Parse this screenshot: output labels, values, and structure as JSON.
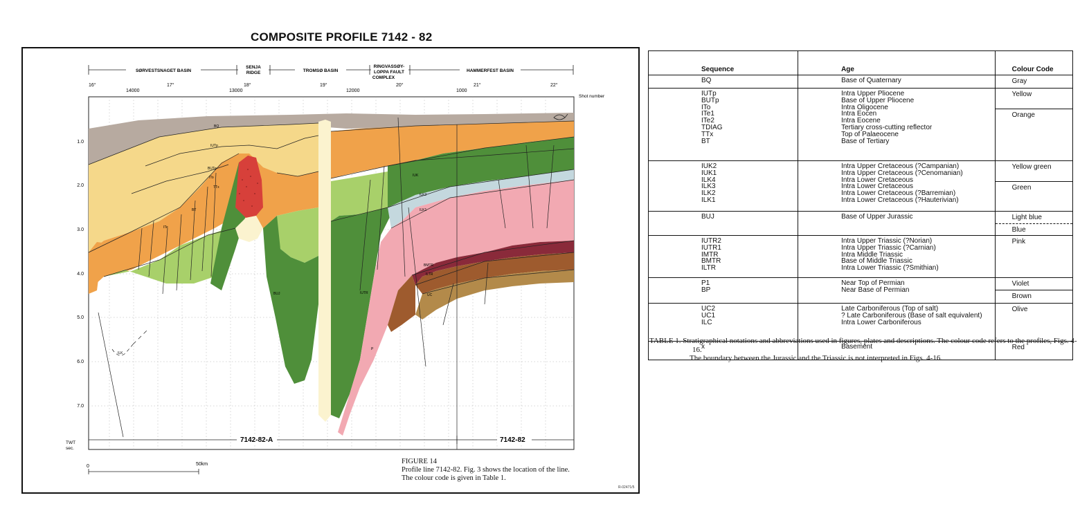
{
  "figure": {
    "title": "COMPOSITE PROFILE 7142 - 82",
    "regions": [
      "SØRVESTSNAGET BASIN",
      "SENJA",
      "RIDGE",
      "TROMSØ BASIN",
      "RINGVASSØY-",
      "LOPPA FAULT",
      "COMPLEX",
      "HAMMERFEST BASIN"
    ],
    "longitudes": [
      "16°",
      "17°",
      "18°",
      "19°",
      "20°",
      "21°",
      "22°"
    ],
    "shot_numbers": [
      "14000",
      "13000",
      "12000",
      "1000"
    ],
    "shot_label": "Shot number",
    "twt_ticks": [
      "1.0",
      "2.0",
      "3.0",
      "4.0",
      "5.0",
      "6.0",
      "7.0"
    ],
    "twt_label": [
      "TWT",
      "sec."
    ],
    "horizon_labels": [
      "BQ",
      "IUTp",
      "BUTp",
      "ITo",
      "TTx",
      "BT",
      "ITe",
      "IUK",
      "ILK2",
      "ILK1",
      "ILK",
      "BUJ",
      "BMTR",
      "UC",
      "ILTR",
      "IUTR",
      "P"
    ],
    "profile_labels": [
      "7142-82-A",
      "7142-82"
    ],
    "scale": {
      "zero": "0",
      "label": "50km"
    },
    "caption": {
      "label": "FIGURE 14",
      "text": "Profile line 7142-82. Fig. 3 shows the location of the line. The colour code is given in Table 1."
    },
    "ref_number": "R-02471/5"
  },
  "table": {
    "headers": {
      "sequence": "Sequence",
      "age": "Age",
      "colour": "Colour Code"
    },
    "rows": [
      {
        "seq": [
          "BQ"
        ],
        "age": [
          "Base of Quaternary"
        ],
        "colours": [
          "Gray"
        ]
      },
      {
        "seq": [
          "IUTp",
          "BUTp",
          "ITo",
          "ITe1",
          "ITe2",
          "TDIAG",
          "TTx",
          "BT"
        ],
        "age": [
          "Intra Upper Pliocene",
          "Base of Upper Pliocene",
          "Intra Oligocene",
          "Intra Eocen",
          "Intra Eocene",
          "Tertiary cross-cutting reflector",
          "Top of Palaeocene",
          "Base of Tertiary"
        ],
        "colours": [
          "Yellow",
          "Orange"
        ]
      },
      {
        "seq": [
          "IUK2",
          "IUK1",
          "ILK4",
          "ILK3",
          "ILK2",
          "ILK1"
        ],
        "age": [
          "Intra Upper Cretaceous (?Campanian)",
          "Intra Upper Cretaceous (?Cenomanian)",
          "Intra Lower Cretaceous",
          "Intra Lower Cretaceous",
          "Intra Lower Cretaceous (?Barremian)",
          "Intra Lower Cretaceous (?Hauterivian)"
        ],
        "colours": [
          "Yellow green",
          "Green"
        ]
      },
      {
        "seq": [
          "BUJ"
        ],
        "age": [
          "Base of Upper Jurassic"
        ],
        "colours": [
          "Light blue",
          "Blue"
        ]
      },
      {
        "seq": [
          "IUTR2",
          "IUTR1",
          "IMTR",
          "BMTR",
          "ILTR"
        ],
        "age": [
          "Intra Upper Triassic (?Norian)",
          "Intra Upper Triassic (?Carnian)",
          "Intra Middle Triassic",
          "Base of Middle Triassic",
          "Intra Lower Triassic (?Smithian)"
        ],
        "colours": [
          "Pink"
        ]
      },
      {
        "seq": [
          "P1",
          "BP"
        ],
        "age": [
          "Near Top of Permian",
          "Near Base of Permian"
        ],
        "colours": [
          "Violet",
          "Brown"
        ]
      },
      {
        "seq": [
          "UC2",
          "UC1",
          "ILC"
        ],
        "age": [
          "Late Carboniferous (Top of salt)",
          "? Late Carboniferous (Base of salt equivalent)",
          "Intra Lower Carboniferous"
        ],
        "colours": [
          "Olive"
        ]
      },
      {
        "seq": [
          "x"
        ],
        "age": [
          "Basement"
        ],
        "colours": [
          "Red"
        ]
      }
    ],
    "caption": "TABLE 1. Stratigraphical notations and abbreviations used in figures, plates and descriptions. The colour code refers to the profiles, Figs. 4-16.",
    "caption2": "The boundary between the Jurassic and the Triassic is not interpreted in Figs. 4-16."
  }
}
